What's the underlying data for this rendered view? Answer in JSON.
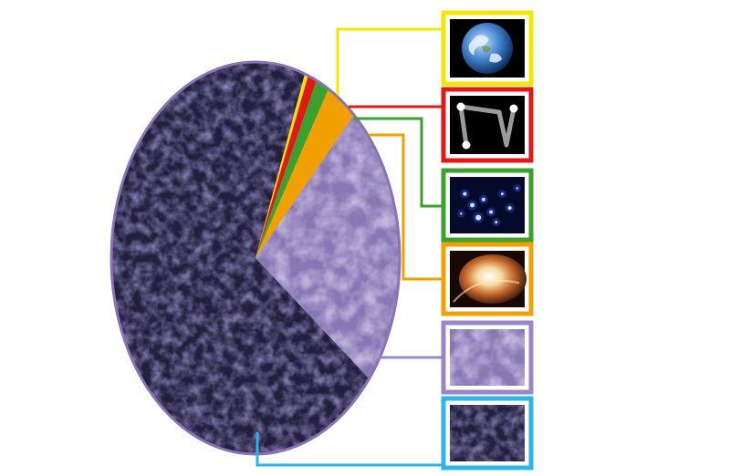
{
  "chart_data": {
    "type": "pie",
    "title": "",
    "slices": [
      {
        "name": "",
        "value": 0.4,
        "color": "#f3e600",
        "fill_kind": "solid",
        "icon": "earth-icon"
      },
      {
        "name": "",
        "value": 1.0,
        "color": "#e01818",
        "fill_kind": "solid",
        "icon": "neutrino-icon"
      },
      {
        "name": "",
        "value": 1.5,
        "color": "#3aa12e",
        "fill_kind": "solid",
        "icon": "star-cluster-icon"
      },
      {
        "name": "",
        "value": 3.5,
        "color": "#f2a000",
        "fill_kind": "solid",
        "icon": "nebula-icon"
      },
      {
        "name": "",
        "value": 23.6,
        "color": "#9a86c8",
        "fill_kind": "light-texture",
        "icon": "dark-matter-icon"
      },
      {
        "name": "",
        "value": 70.0,
        "color": "#2fb4e8",
        "fill_kind": "dark-texture",
        "icon": "dark-energy-icon"
      }
    ],
    "start_angle_deg": -70,
    "legend_placement": "right",
    "grid": false
  },
  "colors": {
    "pie_outline": "#8a72b4",
    "dark_fill": "#23203f",
    "light_fill": "#8777b4"
  }
}
